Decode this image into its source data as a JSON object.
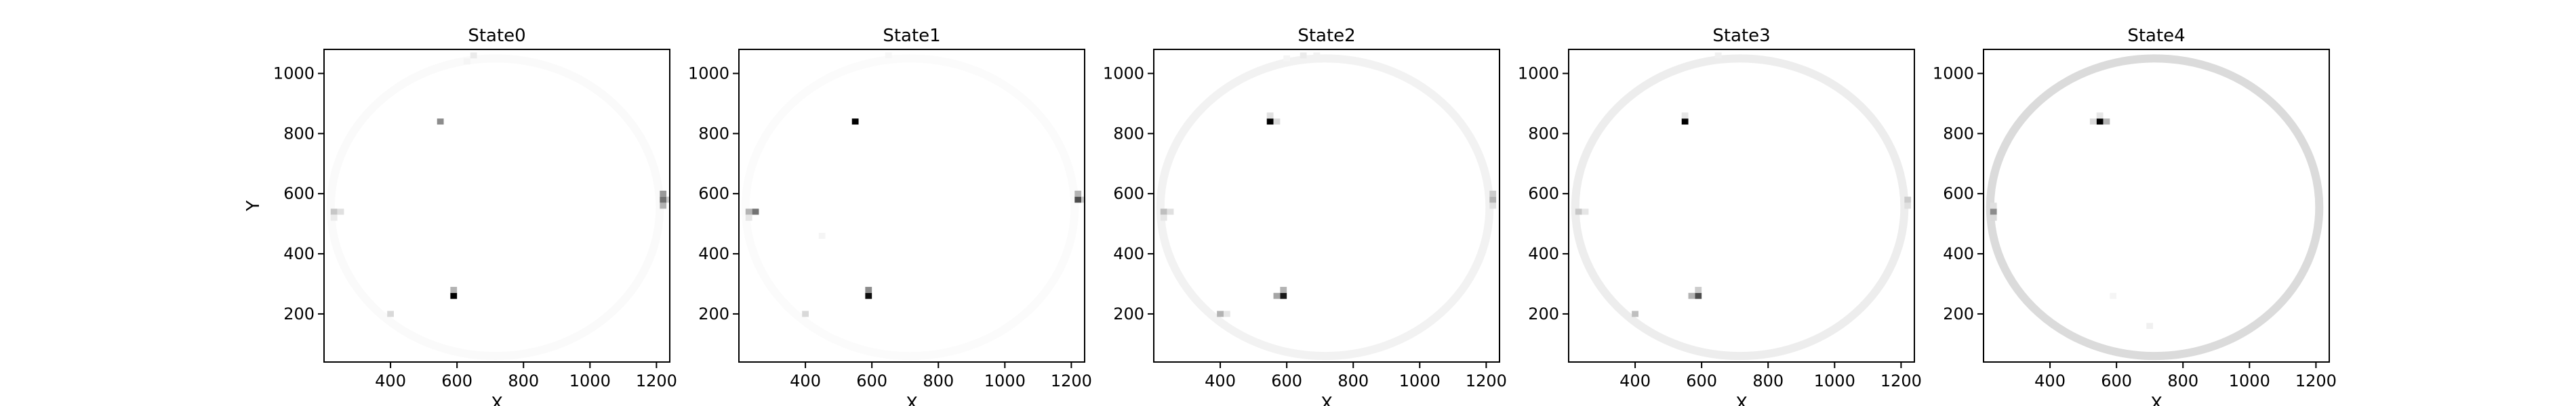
{
  "chart_data": [
    {
      "type": "heatmap",
      "title": "State0",
      "xlabel": "X",
      "ylabel": "Y",
      "xlim": [
        200,
        1240
      ],
      "ylim": [
        40,
        1080
      ],
      "xticks": [
        400,
        600,
        800,
        1000,
        1200
      ],
      "yticks": [
        200,
        400,
        600,
        800,
        1000
      ],
      "grid": false,
      "color_map": {
        "low": "#ffffff",
        "high": "#000000"
      },
      "cells": [
        {
          "x": 590,
          "y": 260,
          "v": 1.0
        },
        {
          "x": 590,
          "y": 280,
          "v": 0.3
        },
        {
          "x": 550,
          "y": 840,
          "v": 0.45
        },
        {
          "x": 1220,
          "y": 580,
          "v": 0.55
        },
        {
          "x": 1220,
          "y": 600,
          "v": 0.4
        },
        {
          "x": 1220,
          "y": 560,
          "v": 0.3
        },
        {
          "x": 1240,
          "y": 580,
          "v": 0.2
        },
        {
          "x": 230,
          "y": 540,
          "v": 0.22
        },
        {
          "x": 250,
          "y": 540,
          "v": 0.12
        },
        {
          "x": 230,
          "y": 520,
          "v": 0.08
        },
        {
          "x": 400,
          "y": 200,
          "v": 0.15
        },
        {
          "x": 650,
          "y": 1060,
          "v": 0.08
        },
        {
          "x": 630,
          "y": 1040,
          "v": 0.04
        }
      ]
    },
    {
      "type": "heatmap",
      "title": "State1",
      "xlabel": "X",
      "ylabel": "",
      "xlim": [
        200,
        1240
      ],
      "ylim": [
        40,
        1080
      ],
      "xticks": [
        400,
        600,
        800,
        1000,
        1200
      ],
      "yticks": [
        200,
        400,
        600,
        800,
        1000
      ],
      "grid": false,
      "color_map": {
        "low": "#ffffff",
        "high": "#000000"
      },
      "cells": [
        {
          "x": 590,
          "y": 260,
          "v": 0.95
        },
        {
          "x": 590,
          "y": 280,
          "v": 0.45
        },
        {
          "x": 550,
          "y": 840,
          "v": 1.0
        },
        {
          "x": 1220,
          "y": 580,
          "v": 0.7
        },
        {
          "x": 1220,
          "y": 600,
          "v": 0.3
        },
        {
          "x": 1240,
          "y": 580,
          "v": 0.2
        },
        {
          "x": 230,
          "y": 540,
          "v": 0.3
        },
        {
          "x": 250,
          "y": 540,
          "v": 0.55
        },
        {
          "x": 230,
          "y": 520,
          "v": 0.1
        },
        {
          "x": 400,
          "y": 200,
          "v": 0.15
        },
        {
          "x": 450,
          "y": 460,
          "v": 0.04
        },
        {
          "x": 650,
          "y": 1060,
          "v": 0.03
        }
      ]
    },
    {
      "type": "heatmap",
      "title": "State2",
      "xlabel": "X",
      "ylabel": "",
      "xlim": [
        200,
        1240
      ],
      "ylim": [
        40,
        1080
      ],
      "xticks": [
        400,
        600,
        800,
        1000,
        1200
      ],
      "yticks": [
        200,
        400,
        600,
        800,
        1000
      ],
      "grid": false,
      "color_map": {
        "low": "#ffffff",
        "high": "#000000"
      },
      "cells": [
        {
          "x": 590,
          "y": 260,
          "v": 0.9
        },
        {
          "x": 570,
          "y": 260,
          "v": 0.35
        },
        {
          "x": 590,
          "y": 280,
          "v": 0.3
        },
        {
          "x": 550,
          "y": 840,
          "v": 1.0
        },
        {
          "x": 570,
          "y": 840,
          "v": 0.15
        },
        {
          "x": 550,
          "y": 860,
          "v": 0.12
        },
        {
          "x": 1220,
          "y": 580,
          "v": 0.3
        },
        {
          "x": 1220,
          "y": 600,
          "v": 0.2
        },
        {
          "x": 1220,
          "y": 560,
          "v": 0.12
        },
        {
          "x": 230,
          "y": 540,
          "v": 0.25
        },
        {
          "x": 250,
          "y": 540,
          "v": 0.12
        },
        {
          "x": 230,
          "y": 520,
          "v": 0.1
        },
        {
          "x": 400,
          "y": 200,
          "v": 0.3
        },
        {
          "x": 420,
          "y": 200,
          "v": 0.1
        },
        {
          "x": 650,
          "y": 1060,
          "v": 0.08
        },
        {
          "x": 690,
          "y": 1060,
          "v": 0.05
        },
        {
          "x": 600,
          "y": 1050,
          "v": 0.04
        }
      ]
    },
    {
      "type": "heatmap",
      "title": "State3",
      "xlabel": "X",
      "ylabel": "",
      "xlim": [
        200,
        1240
      ],
      "ylim": [
        40,
        1080
      ],
      "xticks": [
        400,
        600,
        800,
        1000,
        1200
      ],
      "yticks": [
        200,
        400,
        600,
        800,
        1000
      ],
      "grid": false,
      "color_map": {
        "low": "#ffffff",
        "high": "#000000"
      },
      "cells": [
        {
          "x": 590,
          "y": 260,
          "v": 0.7
        },
        {
          "x": 570,
          "y": 260,
          "v": 0.3
        },
        {
          "x": 590,
          "y": 280,
          "v": 0.2
        },
        {
          "x": 550,
          "y": 840,
          "v": 1.0
        },
        {
          "x": 550,
          "y": 860,
          "v": 0.1
        },
        {
          "x": 1220,
          "y": 580,
          "v": 0.2
        },
        {
          "x": 1220,
          "y": 560,
          "v": 0.12
        },
        {
          "x": 230,
          "y": 540,
          "v": 0.22
        },
        {
          "x": 250,
          "y": 540,
          "v": 0.1
        },
        {
          "x": 400,
          "y": 200,
          "v": 0.25
        },
        {
          "x": 650,
          "y": 1060,
          "v": 0.06
        }
      ]
    },
    {
      "type": "heatmap",
      "title": "State4",
      "xlabel": "X",
      "ylabel": "",
      "xlim": [
        200,
        1240
      ],
      "ylim": [
        40,
        1080
      ],
      "xticks": [
        400,
        600,
        800,
        1000,
        1200
      ],
      "yticks": [
        200,
        400,
        600,
        800,
        1000
      ],
      "grid": false,
      "color_map": {
        "low": "#ffffff",
        "high": "#000000"
      },
      "cells": [
        {
          "x": 550,
          "y": 840,
          "v": 1.0
        },
        {
          "x": 570,
          "y": 840,
          "v": 0.3
        },
        {
          "x": 530,
          "y": 840,
          "v": 0.15
        },
        {
          "x": 550,
          "y": 860,
          "v": 0.1
        },
        {
          "x": 230,
          "y": 540,
          "v": 0.45
        },
        {
          "x": 230,
          "y": 520,
          "v": 0.15
        },
        {
          "x": 230,
          "y": 560,
          "v": 0.12
        },
        {
          "x": 700,
          "y": 160,
          "v": 0.06
        },
        {
          "x": 590,
          "y": 260,
          "v": 0.04
        }
      ]
    }
  ]
}
